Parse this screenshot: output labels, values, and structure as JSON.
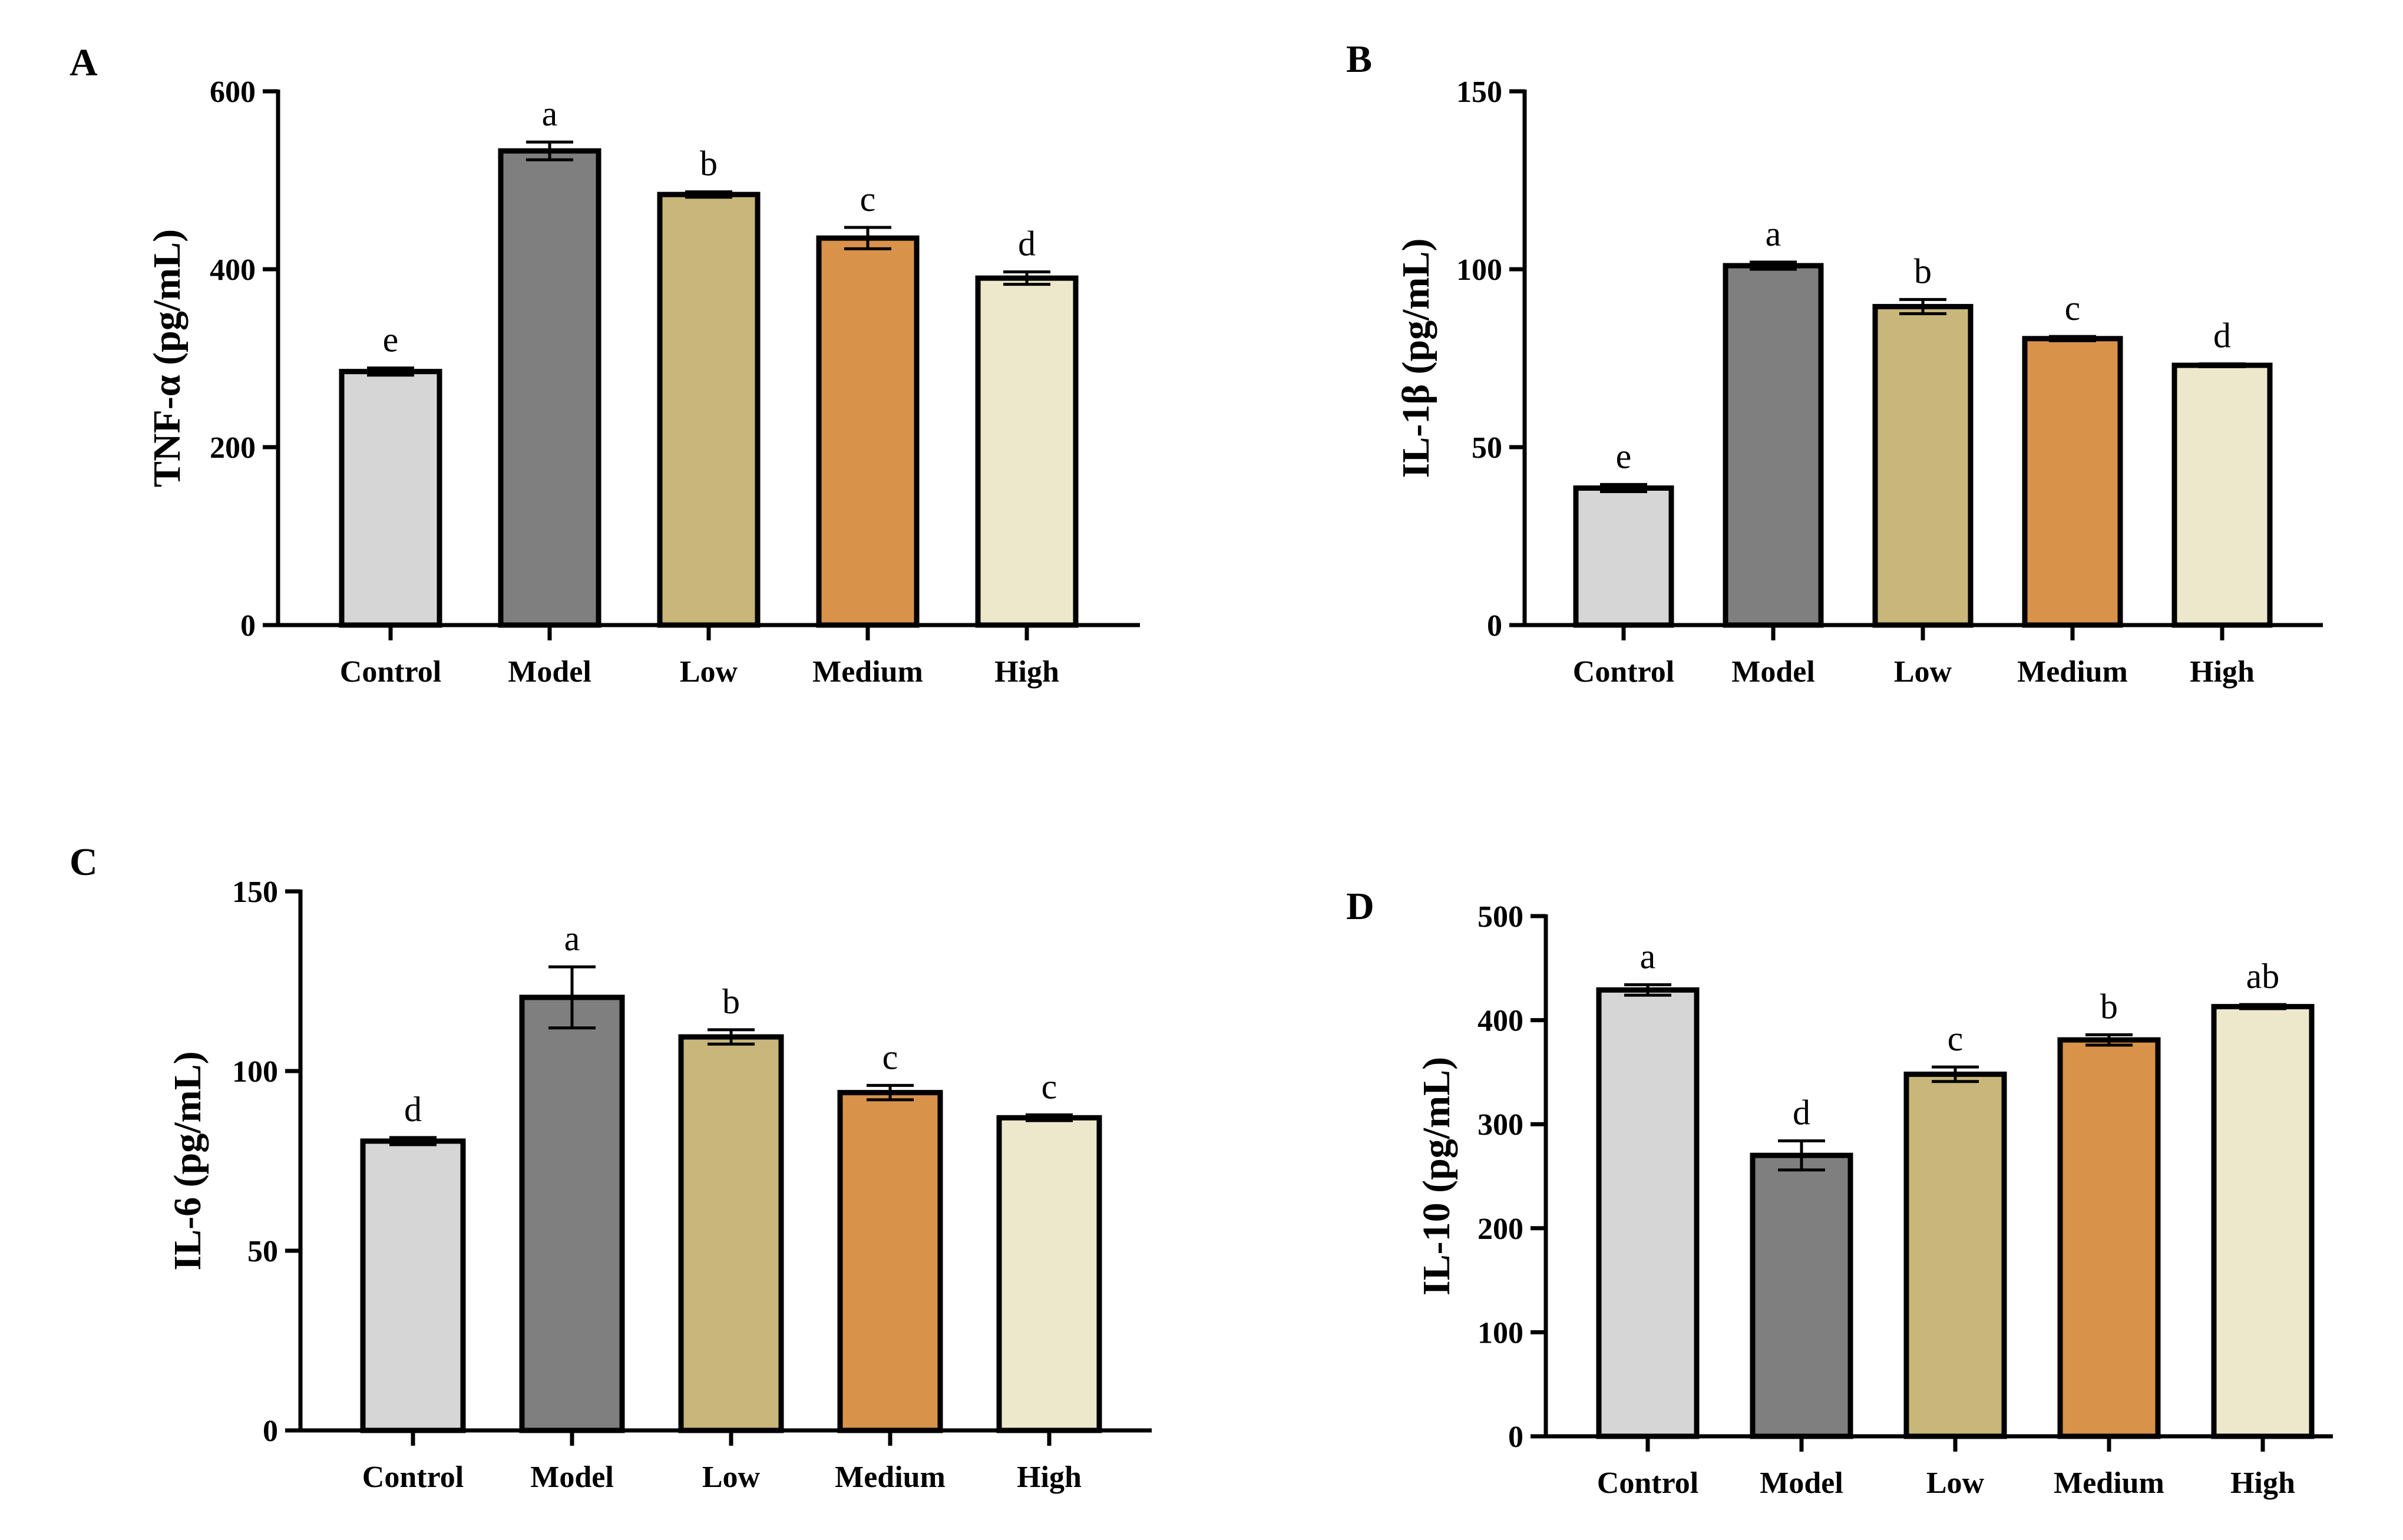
{
  "chart_data": [
    {
      "panel": "A",
      "type": "bar",
      "ylabel": "TNF-α (pg/mL)",
      "xlabel": "",
      "categories": [
        "Control",
        "Model",
        "Low",
        "Medium",
        "High"
      ],
      "values": [
        285,
        533,
        484,
        435,
        390
      ],
      "errors": [
        4,
        10,
        3,
        12,
        7
      ],
      "labels": [
        "e",
        "a",
        "b",
        "c",
        "d"
      ],
      "ylim": [
        0,
        600
      ],
      "yticks": [
        0,
        200,
        400,
        600
      ]
    },
    {
      "panel": "B",
      "type": "bar",
      "ylabel": "IL-1β (pg/mL)",
      "xlabel": "",
      "categories": [
        "Control",
        "Model",
        "Low",
        "Medium",
        "High"
      ],
      "values": [
        38.5,
        101,
        89.5,
        80.5,
        73
      ],
      "errors": [
        1,
        1,
        2,
        0.6,
        0.4
      ],
      "labels": [
        "e",
        "a",
        "b",
        "c",
        "d"
      ],
      "ylim": [
        0,
        150
      ],
      "yticks": [
        0,
        50,
        100,
        150
      ]
    },
    {
      "panel": "C",
      "type": "bar",
      "ylabel": "IL-6 (pg/mL)",
      "xlabel": "",
      "categories": [
        "Control",
        "Model",
        "Low",
        "Medium",
        "High"
      ],
      "values": [
        80.5,
        120.5,
        109.5,
        94,
        87
      ],
      "errors": [
        1,
        8.5,
        2,
        2,
        0.8
      ],
      "labels": [
        "d",
        "a",
        "b",
        "c",
        "c"
      ],
      "ylim": [
        0,
        150
      ],
      "yticks": [
        0,
        50,
        100,
        150
      ]
    },
    {
      "panel": "D",
      "type": "bar",
      "ylabel": "IL-10 (pg/mL)",
      "xlabel": "",
      "categories": [
        "Control",
        "Model",
        "Low",
        "Medium",
        "High"
      ],
      "values": [
        429,
        270,
        348,
        381,
        413
      ],
      "errors": [
        5,
        14,
        7,
        5,
        2
      ],
      "labels": [
        "a",
        "d",
        "c",
        "b",
        "ab"
      ],
      "ylim": [
        0,
        500
      ],
      "yticks": [
        0,
        100,
        200,
        300,
        400,
        500
      ]
    }
  ],
  "colors": {
    "categories": [
      "#d6d6d6",
      "#7f7f7f",
      "#c8b67a",
      "#d8924a",
      "#ede8cb"
    ],
    "axis": "#000000"
  }
}
